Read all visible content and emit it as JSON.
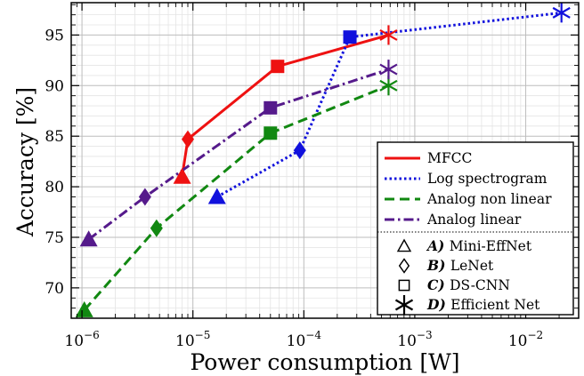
{
  "chart_data": {
    "type": "scatter",
    "xlabel": "Power consumption [W]",
    "ylabel": "Accuracy [%]",
    "xscale": "log",
    "xlim": [
      8e-07,
      0.03
    ],
    "ylim": [
      67,
      98.2
    ],
    "grid": true,
    "legend_position": "lower-right",
    "x_tick_labels": [
      "10^-6",
      "10^-5",
      "10^-4",
      "10^-3",
      "10^-2"
    ],
    "y_tick_labels": [
      "70",
      "75",
      "80",
      "85",
      "90",
      "95"
    ],
    "marker_models": [
      "A) Mini-EffNet",
      "B) LeNet",
      "C) DS-CNN",
      "D) Efficient Net"
    ],
    "marker_legend": [
      {
        "letter": "A)",
        "text": "Mini-EffNet",
        "shape": "triangle"
      },
      {
        "letter": "B)",
        "text": "LeNet",
        "shape": "diamond"
      },
      {
        "letter": "C)",
        "text": "DS-CNN",
        "shape": "square"
      },
      {
        "letter": "D)",
        "text": "Efficient Net",
        "shape": "asterisk"
      }
    ],
    "series": [
      {
        "name": "MFCC",
        "color": "#ee1111",
        "style": "solid",
        "points": [
          {
            "model": "A",
            "x": 8e-06,
            "y": 81.0
          },
          {
            "model": "B",
            "x": 9e-06,
            "y": 84.7
          },
          {
            "model": "C",
            "x": 5.8e-05,
            "y": 91.9
          },
          {
            "model": "D",
            "x": 0.00058,
            "y": 95.0
          }
        ]
      },
      {
        "name": "Log spectrogram",
        "color": "#1111dd",
        "style": "dotted",
        "points": [
          {
            "model": "A",
            "x": 1.65e-05,
            "y": 79.0
          },
          {
            "model": "B",
            "x": 9.2e-05,
            "y": 83.6
          },
          {
            "model": "C",
            "x": 0.00026,
            "y": 94.8
          },
          {
            "model": "D",
            "x": 0.021,
            "y": 97.2
          }
        ]
      },
      {
        "name": "Analog non linear",
        "color": "#118811",
        "style": "dashed",
        "points": [
          {
            "model": "A",
            "x": 1.05e-06,
            "y": 67.8
          },
          {
            "model": "B",
            "x": 4.7e-06,
            "y": 75.9
          },
          {
            "model": "C",
            "x": 5e-05,
            "y": 85.3
          },
          {
            "model": "D",
            "x": 0.00058,
            "y": 90.0
          }
        ]
      },
      {
        "name": "Analog linear",
        "color": "#551a8b",
        "style": "dashdot",
        "points": [
          {
            "model": "A",
            "x": 1.15e-06,
            "y": 74.8
          },
          {
            "model": "B",
            "x": 3.7e-06,
            "y": 79.0
          },
          {
            "model": "C",
            "x": 5e-05,
            "y": 87.8
          },
          {
            "model": "D",
            "x": 0.00058,
            "y": 91.6
          }
        ]
      }
    ]
  }
}
